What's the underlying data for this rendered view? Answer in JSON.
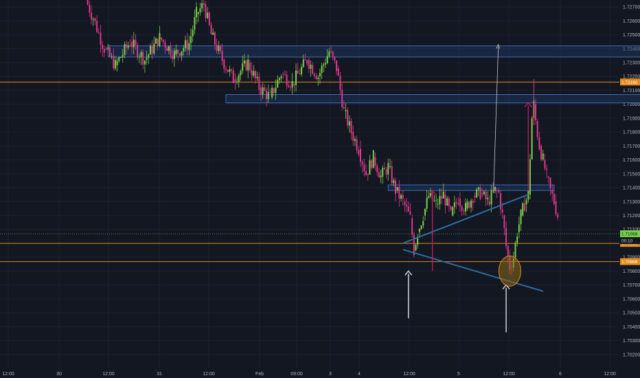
{
  "colors": {
    "background": "#131722",
    "grid": "#1c2030",
    "axis_text": "#b2b5be",
    "bull": "#7bd148",
    "bear": "#e0378a",
    "zone_fill": "#1e3a66",
    "zone_stroke": "#3a6fc0",
    "orange_line": "#e38b1c",
    "trendline": "#2b6e9f",
    "annotation_arrow": "#c9c9c9",
    "measure_arrow": "#c2185b",
    "circle_fill": "#8a6a1c",
    "circle_stroke": "#e38b1c",
    "price_badge": "#79d14a"
  },
  "chart_data": {
    "type": "candlestick",
    "ylim": [
      1.701,
      1.7275
    ],
    "y_ticks": [
      "1.72700",
      "1.72600",
      "1.72500",
      "1.72400",
      "1.72300",
      "1.72200",
      "1.72100",
      "1.72000",
      "1.71900",
      "1.71800",
      "1.71700",
      "1.71600",
      "1.71500",
      "1.71400",
      "1.71300",
      "1.71200",
      "1.71100",
      "1.70900",
      "1.70800",
      "1.70700",
      "1.70600",
      "1.70500",
      "1.70400",
      "1.70300",
      "1.70200"
    ],
    "x_labels": [
      "12:00",
      "30",
      "12:00",
      "31",
      "12:00",
      "Feb",
      "09:00",
      "3",
      "4",
      "12:00",
      "5",
      "12:00",
      "6",
      "12:00"
    ],
    "price_path": [
      [
        0.0,
        1.7275
      ],
      [
        0.02,
        1.7262
      ],
      [
        0.05,
        1.724
      ],
      [
        0.08,
        1.7228
      ],
      [
        0.12,
        1.7245
      ],
      [
        0.16,
        1.7232
      ],
      [
        0.2,
        1.7248
      ],
      [
        0.24,
        1.7236
      ],
      [
        0.28,
        1.7244
      ],
      [
        0.3,
        1.7265
      ],
      [
        0.32,
        1.7272
      ],
      [
        0.34,
        1.725
      ],
      [
        0.37,
        1.7232
      ],
      [
        0.4,
        1.7218
      ],
      [
        0.44,
        1.723
      ],
      [
        0.47,
        1.7212
      ],
      [
        0.5,
        1.7205
      ],
      [
        0.53,
        1.7222
      ],
      [
        0.56,
        1.7215
      ],
      [
        0.6,
        1.7232
      ],
      [
        0.63,
        1.722
      ],
      [
        0.66,
        1.7238
      ],
      [
        0.68,
        1.7226
      ],
      [
        0.7,
        1.7195
      ],
      [
        0.72,
        1.718
      ],
      [
        0.74,
        1.7168
      ],
      [
        0.76,
        1.715
      ],
      [
        0.78,
        1.7162
      ],
      [
        0.8,
        1.7148
      ],
      [
        0.82,
        1.7155
      ],
      [
        0.84,
        1.7138
      ],
      [
        0.86,
        1.713
      ],
      [
        0.88,
        1.7118
      ],
      [
        0.89,
        1.7095
      ],
      [
        0.9,
        1.7108
      ],
      [
        0.915,
        1.712
      ],
      [
        0.93,
        1.7134
      ],
      [
        0.95,
        1.7128
      ],
      [
        0.97,
        1.7135
      ],
      [
        0.99,
        1.712
      ],
      [
        1.01,
        1.7132
      ],
      [
        1.03,
        1.7125
      ],
      [
        1.05,
        1.7134
      ],
      [
        1.07,
        1.7136
      ],
      [
        1.09,
        1.713
      ],
      [
        1.11,
        1.7138
      ],
      [
        1.12,
        1.7136
      ],
      [
        1.13,
        1.712
      ],
      [
        1.14,
        1.7098
      ],
      [
        1.15,
        1.7083
      ],
      [
        1.16,
        1.709
      ],
      [
        1.17,
        1.7108
      ],
      [
        1.18,
        1.712
      ],
      [
        1.19,
        1.7128
      ],
      [
        1.2,
        1.7135
      ],
      [
        1.21,
        1.719
      ],
      [
        1.215,
        1.72
      ],
      [
        1.22,
        1.7188
      ],
      [
        1.23,
        1.717
      ],
      [
        1.24,
        1.716
      ],
      [
        1.25,
        1.7148
      ],
      [
        1.26,
        1.7138
      ],
      [
        1.27,
        1.713
      ],
      [
        1.28,
        1.712
      ]
    ],
    "zones": [
      {
        "y_top": 1.7242,
        "y_bottom": 1.7234,
        "t_start": 0.06,
        "t_end": 1.55
      },
      {
        "y_top": 1.7207,
        "y_bottom": 1.7201,
        "t_start": 0.38,
        "t_end": 1.55
      },
      {
        "y_top": 1.7142,
        "y_bottom": 1.7138,
        "t_start": 0.82,
        "t_end": 1.27
      }
    ],
    "horizontal_lines": [
      {
        "y": 1.7216,
        "color_key": "orange_line",
        "badge": "1.72160"
      },
      {
        "y": 1.70999,
        "color_key": "orange_line",
        "badge": "1.70999"
      },
      {
        "y": 1.70868,
        "color_key": "orange_line",
        "badge": "1.70868"
      }
    ],
    "trendlines": [
      {
        "t1": 0.86,
        "y1": 1.70955,
        "t2": 1.24,
        "y2": 1.70655
      },
      {
        "t1": 0.86,
        "y1": 1.71,
        "t2": 1.2,
        "y2": 1.7135
      }
    ],
    "current_price": {
      "value": "1.71068",
      "countdown": "00:10"
    },
    "markers": [
      {
        "kind": "up-arrow",
        "t": 0.875,
        "y_from": 1.7046,
        "y_to": 1.708
      },
      {
        "kind": "up-arrow",
        "t": 1.14,
        "y_from": 1.7036,
        "y_to": 1.707
      },
      {
        "kind": "measure-arrow",
        "t": 1.115,
        "y_from": 1.7136,
        "y_to": 1.7243
      },
      {
        "kind": "red-arrow",
        "t": 0.94,
        "y_from": 1.708,
        "y_to": 1.7138
      },
      {
        "kind": "red-arrow",
        "t": 1.2,
        "y_from": 1.7138,
        "y_to": 1.7201
      }
    ],
    "ellipse": {
      "t": 1.15,
      "y": 1.708
    }
  }
}
